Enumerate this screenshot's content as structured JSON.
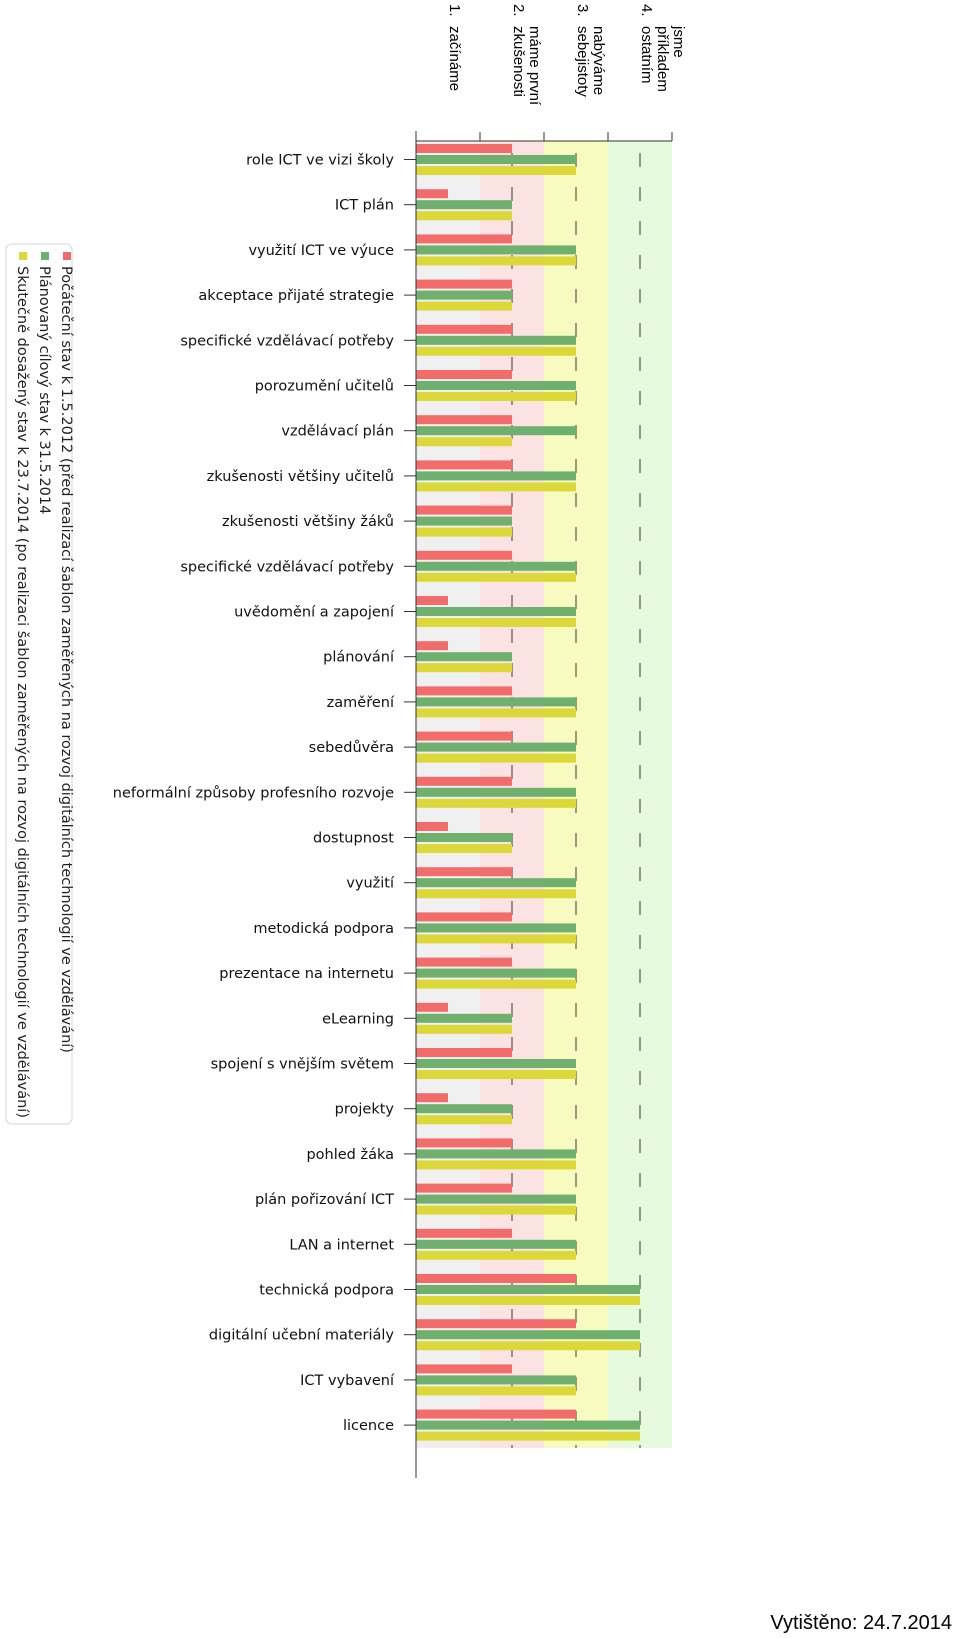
{
  "chart_data": {
    "type": "bar",
    "orientation": "horizontal",
    "categories": [
      "role ICT ve vizi školy",
      "ICT plán",
      "využití ICT ve výuce",
      "akceptace přijaté strategie",
      "specifické vzdělávací potřeby",
      "porozumění učitelů",
      "vzdělávací plán",
      "zkušenosti většiny učitelů",
      "zkušenosti většiny žáků",
      "specifické vzdělávací potřeby",
      "uvědomění a zapojení",
      "plánování",
      "zaměření",
      "sebedůvěra",
      "neformální způsoby profesního rozvoje",
      "dostupnost",
      "využití",
      "metodická podpora",
      "prezentace na internetu",
      "eLearning",
      "spojení s vnějším světem",
      "projekty",
      "pohled žáka",
      "plán pořizování ICT",
      "LAN a internet",
      "technická podpora",
      "digitální učební materiály",
      "ICT vybavení",
      "licence"
    ],
    "series": [
      {
        "name": "Počáteční stav k 1.5.2012 (před realizací šablon zaměřených na rozvoj digitálních technologií ve vzdělávání)",
        "color": "#f26c6c",
        "values": [
          1.5,
          0.5,
          1.5,
          1.5,
          1.5,
          1.5,
          1.5,
          1.5,
          1.5,
          1.5,
          0.5,
          0.5,
          1.5,
          1.5,
          1.5,
          0.5,
          1.5,
          1.5,
          1.5,
          0.5,
          1.5,
          0.5,
          1.5,
          1.5,
          1.5,
          2.5,
          2.5,
          1.5,
          2.5
        ]
      },
      {
        "name": "Plánovaný cílový stav k 31.5.2014",
        "color": "#6fb06f",
        "values": [
          2.5,
          1.5,
          2.5,
          1.5,
          2.5,
          2.5,
          2.5,
          2.5,
          1.5,
          2.5,
          2.5,
          1.5,
          2.5,
          2.5,
          2.5,
          1.5,
          2.5,
          2.5,
          2.5,
          1.5,
          2.5,
          1.5,
          2.5,
          2.5,
          2.5,
          3.5,
          3.5,
          2.5,
          3.5
        ]
      },
      {
        "name": "Skutečně dosažený stav k 23.7.2014 (po realizaci šablon zaměřených na rozvoj digitálních technologií ve vzdělávání)",
        "color": "#dcd83a",
        "values": [
          2.5,
          1.5,
          2.5,
          1.5,
          2.5,
          2.5,
          1.5,
          2.5,
          1.5,
          2.5,
          2.5,
          1.5,
          2.5,
          2.5,
          2.5,
          1.5,
          2.5,
          2.5,
          2.5,
          1.5,
          2.5,
          1.5,
          2.5,
          2.5,
          2.5,
          3.5,
          3.5,
          2.5,
          3.5
        ]
      }
    ],
    "levels": [
      {
        "num": "1.",
        "name": "začínáme",
        "color": "#f0f0f0"
      },
      {
        "num": "2.",
        "name": "máme první zkušenosti",
        "color": "#fce3e3"
      },
      {
        "num": "3.",
        "name": "nabýváme sebejistoty",
        "color": "#f7fbc0"
      },
      {
        "num": "4.",
        "name": "jsme příkladem ostatním",
        "color": "#e6fbde"
      }
    ],
    "xlim": [
      0,
      4
    ],
    "legend_position": "left"
  },
  "footer": {
    "label": "Vytištěno:",
    "date": "24.7.2014"
  }
}
